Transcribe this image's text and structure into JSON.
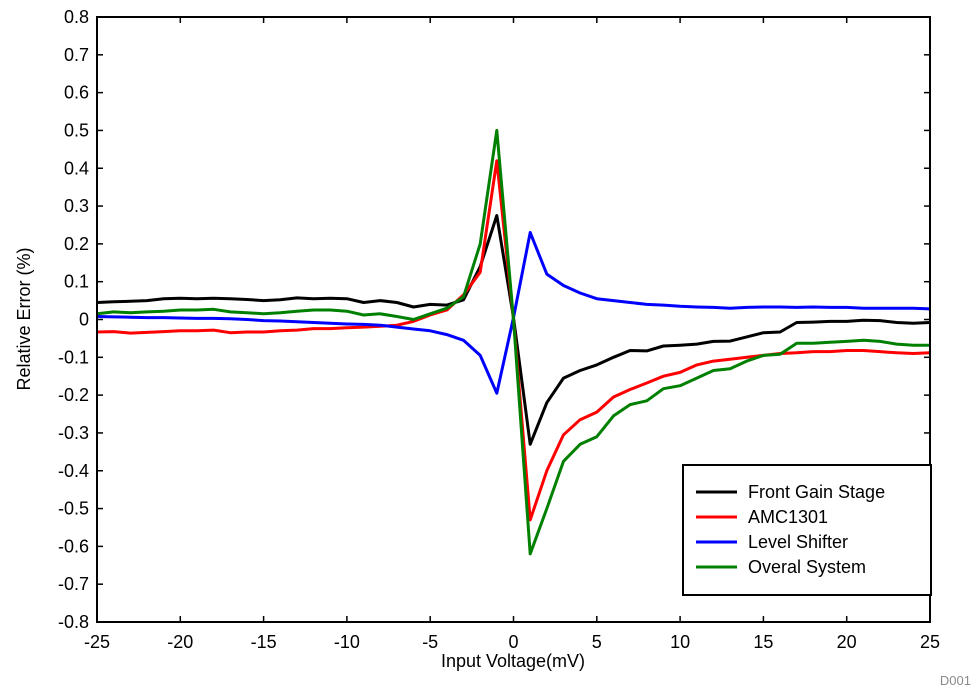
{
  "chart_data": {
    "type": "line",
    "title": "",
    "xlabel": "Input Voltage(mV)",
    "ylabel": "Relative Error (%)",
    "xlim": [
      -25,
      25
    ],
    "ylim": [
      -0.8,
      0.8
    ],
    "x_ticks": [
      -25,
      -20,
      -15,
      -10,
      -5,
      0,
      5,
      10,
      15,
      20,
      25
    ],
    "x_tick_labels": [
      "-25",
      "-20",
      "-15",
      "-10",
      "-5",
      "0",
      "5",
      "10",
      "15",
      "20",
      "25"
    ],
    "y_ticks": [
      -0.8,
      -0.7,
      -0.6,
      -0.5,
      -0.4,
      -0.3,
      -0.2,
      -0.1,
      0,
      0.1,
      0.2,
      0.3,
      0.4,
      0.5,
      0.6,
      0.7,
      0.8
    ],
    "y_tick_labels": [
      "-0.8",
      "-0.7",
      "-0.6",
      "-0.5",
      "-0.4",
      "-0.3",
      "-0.2",
      "-0.1",
      "0",
      "0.1",
      "0.2",
      "0.3",
      "0.4",
      "0.5",
      "0.6",
      "0.7",
      "0.8"
    ],
    "grid": false,
    "legend_position": "bottom-right",
    "x": [
      -25,
      -24,
      -23,
      -22,
      -21,
      -20,
      -19,
      -18,
      -17,
      -16,
      -15,
      -14,
      -13,
      -12,
      -11,
      -10,
      -9,
      -8,
      -7,
      -6,
      -5,
      -4,
      -3,
      -2,
      -1,
      0,
      1,
      2,
      3,
      4,
      5,
      6,
      7,
      8,
      9,
      10,
      11,
      12,
      13,
      14,
      15,
      16,
      17,
      18,
      19,
      20,
      21,
      22,
      23,
      24,
      25
    ],
    "series": [
      {
        "name": "Front Gain Stage",
        "color": "#000000",
        "values": [
          0.045,
          0.047,
          0.048,
          0.05,
          0.055,
          0.056,
          0.055,
          0.056,
          0.055,
          0.053,
          0.05,
          0.052,
          0.057,
          0.055,
          0.056,
          0.055,
          0.045,
          0.05,
          0.045,
          0.033,
          0.04,
          0.038,
          0.052,
          0.14,
          0.275,
          0.005,
          -0.33,
          -0.22,
          -0.155,
          -0.135,
          -0.12,
          -0.1,
          -0.082,
          -0.083,
          -0.07,
          -0.068,
          -0.065,
          -0.058,
          -0.057,
          -0.046,
          -0.035,
          -0.033,
          -0.008,
          -0.007,
          -0.005,
          -0.005,
          -0.002,
          -0.003,
          -0.008,
          -0.01,
          -0.008
        ]
      },
      {
        "name": "AMC1301",
        "color": "#ff0000",
        "values": [
          -0.033,
          -0.032,
          -0.036,
          -0.034,
          -0.032,
          -0.03,
          -0.03,
          -0.028,
          -0.035,
          -0.033,
          -0.033,
          -0.03,
          -0.028,
          -0.024,
          -0.024,
          -0.022,
          -0.02,
          -0.018,
          -0.015,
          -0.005,
          0.012,
          0.025,
          0.065,
          0.125,
          0.42,
          0.0,
          -0.53,
          -0.4,
          -0.305,
          -0.265,
          -0.245,
          -0.205,
          -0.185,
          -0.168,
          -0.15,
          -0.14,
          -0.12,
          -0.11,
          -0.105,
          -0.1,
          -0.095,
          -0.09,
          -0.088,
          -0.085,
          -0.085,
          -0.082,
          -0.082,
          -0.085,
          -0.088,
          -0.09,
          -0.088
        ]
      },
      {
        "name": "Level Shifter",
        "color": "#0000ff",
        "values": [
          0.008,
          0.007,
          0.006,
          0.005,
          0.005,
          0.004,
          0.003,
          0.003,
          0.002,
          0.0,
          -0.003,
          -0.004,
          -0.006,
          -0.008,
          -0.01,
          -0.012,
          -0.013,
          -0.015,
          -0.02,
          -0.025,
          -0.03,
          -0.04,
          -0.055,
          -0.095,
          -0.195,
          0.005,
          0.23,
          0.12,
          0.09,
          0.07,
          0.055,
          0.05,
          0.045,
          0.04,
          0.038,
          0.035,
          0.033,
          0.032,
          0.03,
          0.032,
          0.033,
          0.033,
          0.032,
          0.033,
          0.032,
          0.032,
          0.03,
          0.03,
          0.03,
          0.03,
          0.028
        ]
      },
      {
        "name": "Overal System",
        "color": "#008000",
        "values": [
          0.015,
          0.02,
          0.018,
          0.02,
          0.022,
          0.025,
          0.025,
          0.027,
          0.02,
          0.018,
          0.015,
          0.018,
          0.022,
          0.025,
          0.025,
          0.022,
          0.012,
          0.015,
          0.008,
          0.0,
          0.015,
          0.03,
          0.06,
          0.2,
          0.5,
          0.0,
          -0.62,
          -0.5,
          -0.375,
          -0.33,
          -0.31,
          -0.255,
          -0.225,
          -0.215,
          -0.183,
          -0.175,
          -0.155,
          -0.135,
          -0.13,
          -0.11,
          -0.095,
          -0.092,
          -0.063,
          -0.063,
          -0.06,
          -0.058,
          -0.055,
          -0.058,
          -0.065,
          -0.068,
          -0.068
        ]
      }
    ]
  },
  "figure_id": "D001"
}
